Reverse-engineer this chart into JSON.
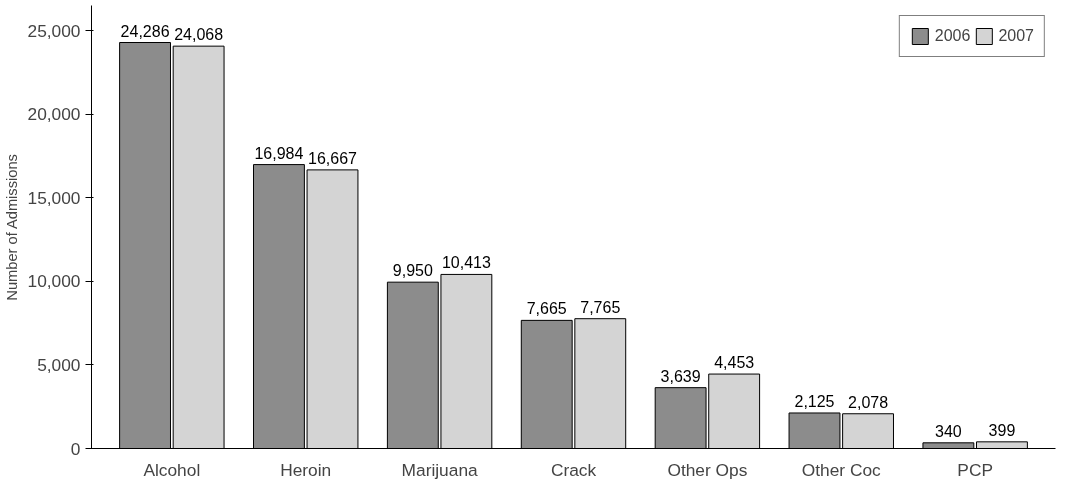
{
  "chart_data": {
    "type": "bar",
    "ylabel": "Number of Admissions",
    "categories": [
      "Alcohol",
      "Heroin",
      "Marijuana",
      "Crack",
      "Other Ops",
      "Other Coc",
      "PCP"
    ],
    "series": [
      {
        "name": "2006",
        "color": "#8c8c8c",
        "values": [
          24286,
          16984,
          9950,
          7665,
          3639,
          2125,
          340
        ],
        "value_labels": [
          "24,286",
          "16,984",
          "9,950",
          "7,665",
          "3,639",
          "2,125",
          "340"
        ]
      },
      {
        "name": "2007",
        "color": "#d4d4d4",
        "values": [
          24068,
          16667,
          10413,
          7765,
          4453,
          2078,
          399
        ],
        "value_labels": [
          "24,068",
          "16,667",
          "10,413",
          "7,765",
          "4,453",
          "2,078",
          "399"
        ]
      }
    ],
    "ylim": [
      0,
      25000
    ],
    "yticks": [
      {
        "value": 0,
        "label": "0"
      },
      {
        "value": 5000,
        "label": "5,000"
      },
      {
        "value": 10000,
        "label": "10,000"
      },
      {
        "value": 15000,
        "label": "15,000"
      },
      {
        "value": 20000,
        "label": "20,000"
      },
      {
        "value": 25000,
        "label": "25,000"
      }
    ],
    "grid": false,
    "legend": "top right"
  }
}
